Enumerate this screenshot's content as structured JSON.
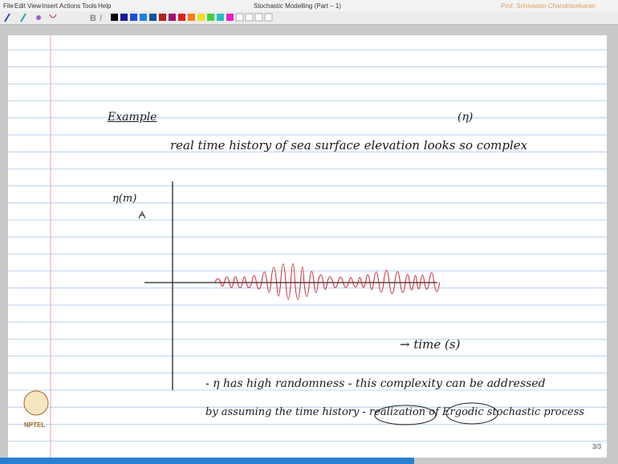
{
  "menu": [
    "File",
    "Edit",
    "View",
    "Insert",
    "Actions",
    "Tools",
    "Help"
  ],
  "window_title": "Stochastic Modelling (Part – 1)",
  "author": "Prof. Srinivasan Chandrasekaran",
  "notes": {
    "heading": "Example",
    "symbol": "(η)",
    "line1": "real time history of sea surface elevation looks so complex",
    "y_label": "η(m)",
    "x_label": "→ time (s)",
    "line2": "- η has high randomness - this complexity can be addressed",
    "line3": "by assuming the time history - realization of Ergodic stochastic process"
  },
  "logo": "NPTEL",
  "page_number": "3/3"
}
